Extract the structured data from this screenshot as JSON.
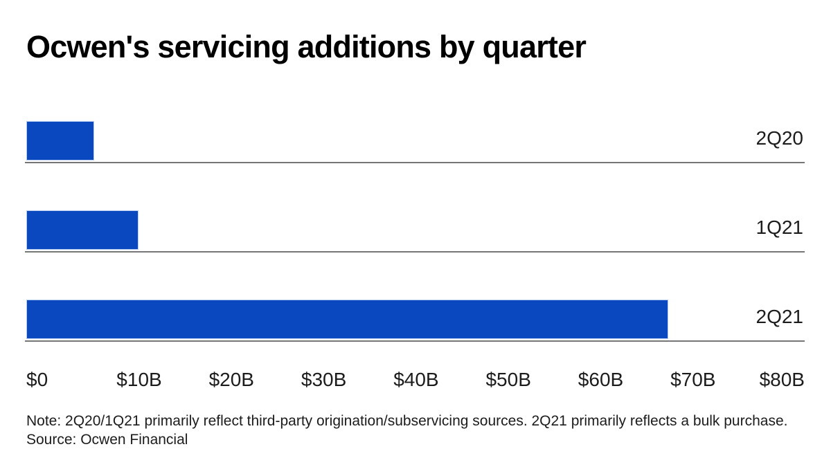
{
  "title": "Ocwen's servicing additions by quarter",
  "colors": {
    "bar": "#0a48c0",
    "baseline": "#767676",
    "text": "#1c1c1c"
  },
  "chart_data": {
    "type": "bar",
    "orientation": "horizontal",
    "title": "Ocwen's servicing additions by quarter",
    "categories": [
      "2Q20",
      "1Q21",
      "2Q21"
    ],
    "values": [
      7,
      11.5,
      66
    ],
    "unit": "USD billions",
    "xlim": [
      0,
      80
    ],
    "x_tick_labels": [
      "$0",
      "$10B",
      "$20B",
      "$30B",
      "$40B",
      "$50B",
      "$60B",
      "$70B",
      "$80B"
    ],
    "grid": false,
    "legend": false,
    "bar_color": "#0a48c0",
    "category_label_position": "right"
  },
  "note": "Note: 2Q20/1Q21 primarily reflect third-party origination/subservicing sources. 2Q21 primarily reflects a bulk purchase.",
  "source": "Source: Ocwen Financial"
}
